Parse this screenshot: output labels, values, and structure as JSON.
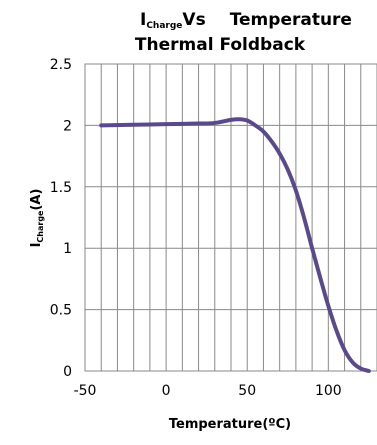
{
  "chart_data": {
    "type": "line",
    "title": {
      "prefix": "I",
      "subscript": "Charge",
      "rest": "Vs",
      "tail": "Temperature",
      "line2": "Thermal Foldback"
    },
    "xlabel": "Temperature(ºC)",
    "ylabel": {
      "main": "I",
      "subscript": "Charge",
      "unit": "(A)"
    },
    "xlim": [
      -50,
      130
    ],
    "ylim": [
      0,
      2.5
    ],
    "xticks": [
      -50,
      0,
      50,
      100
    ],
    "yticks": [
      0,
      0.5,
      1,
      1.5,
      2,
      2.5
    ],
    "xtick_labels": [
      "-50",
      "0",
      "50",
      "100"
    ],
    "ytick_labels": [
      "0",
      "0.5",
      "1",
      "1.5",
      "2",
      "2.5"
    ],
    "grid": true,
    "grid_x_step": 10,
    "grid_y_step": 0.5,
    "series": [
      {
        "color": "#5b4a8b",
        "x": [
          -40,
          -20,
          0,
          20,
          30,
          40,
          45,
          50,
          55,
          60,
          65,
          70,
          75,
          80,
          85,
          90,
          95,
          100,
          105,
          110,
          115,
          120,
          125
        ],
        "y": [
          2.0,
          2.005,
          2.01,
          2.015,
          2.02,
          2.045,
          2.05,
          2.04,
          2.0,
          1.95,
          1.87,
          1.77,
          1.64,
          1.47,
          1.25,
          1.0,
          0.76,
          0.53,
          0.33,
          0.17,
          0.07,
          0.02,
          0.0
        ]
      }
    ]
  }
}
